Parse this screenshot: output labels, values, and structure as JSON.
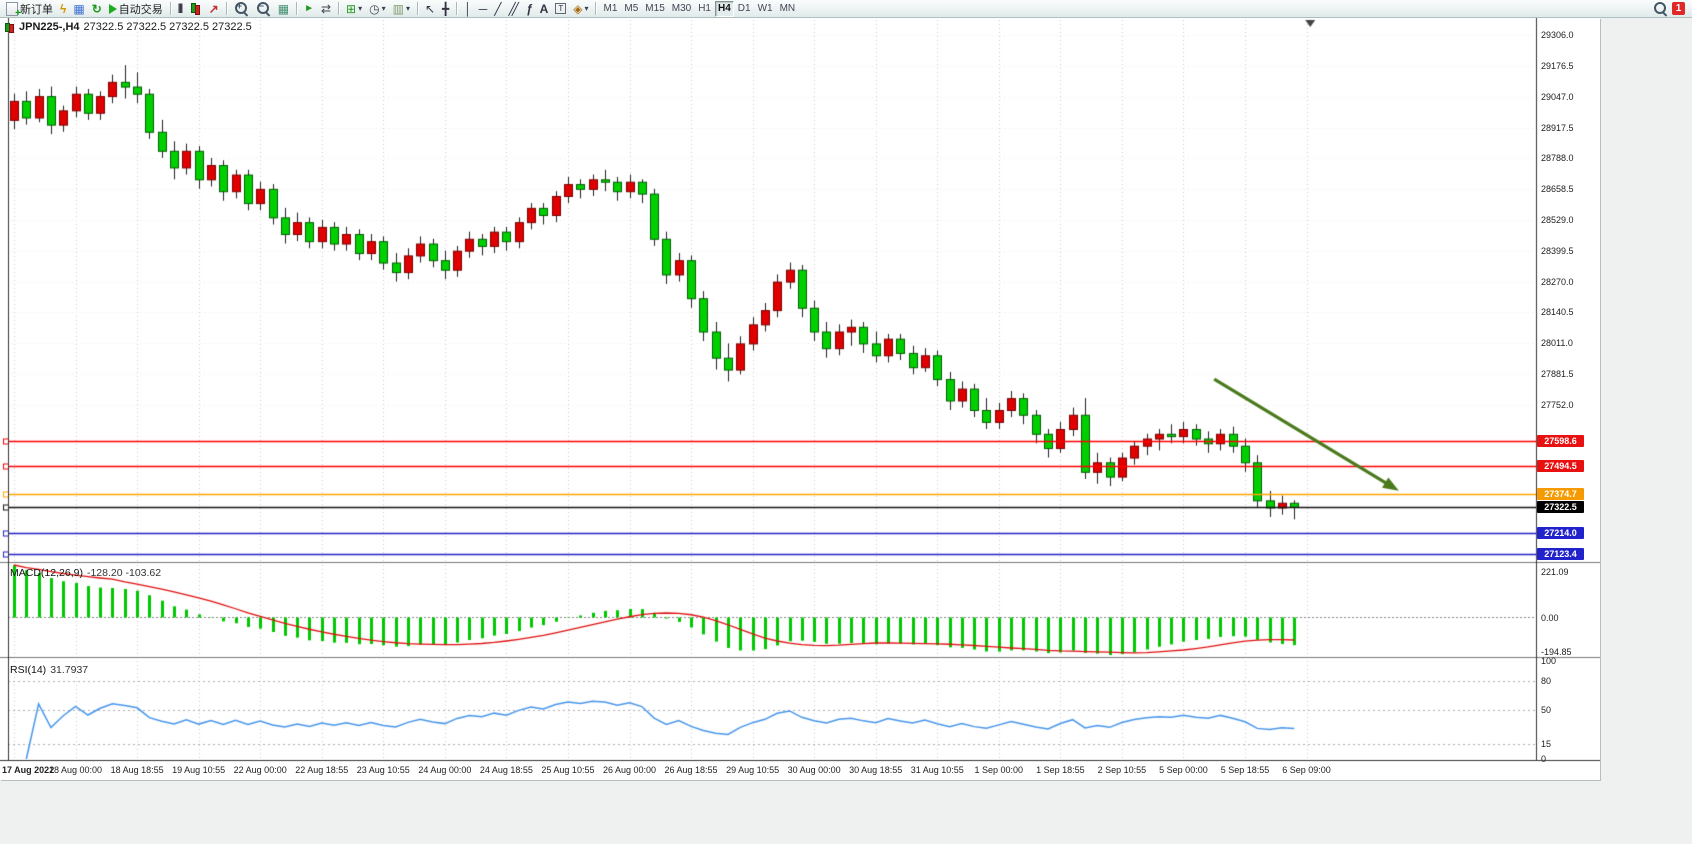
{
  "toolbar": {
    "new_order_label": "新订单",
    "auto_trading_label": "自动交易",
    "notification_count": "1",
    "items": [
      {
        "name": "new-order-button",
        "icon": "new-order",
        "shape": true,
        "label": "新订单"
      },
      {
        "name": "scripts-button",
        "icon": "bolt",
        "glyph": "ϟ"
      },
      {
        "name": "market-watch-button",
        "icon": "monitor",
        "glyph": "▦"
      },
      {
        "name": "refresh-button",
        "icon": "refresh",
        "glyph": "↻"
      },
      {
        "name": "auto-trading-button",
        "icon": "play",
        "shape": true,
        "label": "自动交易"
      },
      {
        "t": "sep"
      },
      {
        "name": "bar-chart-button",
        "icon": "bars",
        "glyph": "|||"
      },
      {
        "name": "candle-chart-button",
        "icon": "candles",
        "shape": true
      },
      {
        "name": "line-chart-button",
        "icon": "linechart",
        "glyph": "↗"
      },
      {
        "t": "sep"
      },
      {
        "name": "zoom-in-button",
        "icon": "zoom-in",
        "shape": true
      },
      {
        "name": "zoom-out-button",
        "icon": "zoom-out",
        "shape": true
      },
      {
        "name": "tile-windows-button",
        "icon": "tile",
        "glyph": "▦"
      },
      {
        "t": "sep"
      },
      {
        "name": "auto-scroll-button",
        "icon": "autoscroll",
        "glyph": "►"
      },
      {
        "name": "chart-shift-button",
        "icon": "chartshift",
        "glyph": "⇄"
      },
      {
        "t": "sep"
      },
      {
        "name": "new-chart-button",
        "icon": "newchart",
        "glyph": "⊞",
        "caret": true
      },
      {
        "name": "periods-button",
        "icon": "clock",
        "glyph": "◷",
        "caret": true
      },
      {
        "name": "templates-button",
        "icon": "template",
        "glyph": "▥",
        "caret": true
      },
      {
        "t": "sep"
      },
      {
        "name": "cursor-button",
        "icon": "cursor",
        "glyph": "↖"
      },
      {
        "name": "crosshair-button",
        "icon": "crosshair",
        "glyph": "╋"
      },
      {
        "t": "sep"
      },
      {
        "name": "vertical-line-button",
        "icon": "vline",
        "glyph": "│"
      },
      {
        "name": "horizontal-line-button",
        "icon": "hline",
        "glyph": "─"
      },
      {
        "name": "trendline-button",
        "icon": "trendline",
        "glyph": "╱"
      },
      {
        "name": "channel-button",
        "icon": "channel",
        "glyph": "╱╱"
      },
      {
        "name": "fibonacci-button",
        "icon": "fibo",
        "glyph": "ƒ"
      },
      {
        "name": "text-button",
        "icon": "text",
        "glyph": "A"
      },
      {
        "name": "text-label-button",
        "icon": "label",
        "glyph": "T"
      },
      {
        "name": "shapes-button",
        "icon": "shapes",
        "glyph": "◈",
        "caret": true
      },
      {
        "t": "sep"
      },
      {
        "t": "tf"
      },
      {
        "t": "spacer"
      },
      {
        "name": "search-button",
        "icon": "search",
        "shape": true
      },
      {
        "t": "badge"
      }
    ],
    "timeframes": [
      {
        "label": "M1"
      },
      {
        "label": "M5"
      },
      {
        "label": "M15"
      },
      {
        "label": "M30"
      },
      {
        "label": "H1"
      },
      {
        "label": "H4",
        "active": true
      },
      {
        "label": "D1"
      },
      {
        "label": "W1"
      },
      {
        "label": "MN"
      }
    ]
  },
  "chart": {
    "symbol_period": "JPN225-,H4",
    "ohlc_text": "27322.5 27322.5 27322.5 27322.5"
  },
  "chart_data": {
    "type": "candlestick",
    "symbol": "JPN225-",
    "timeframe": "H4",
    "bull_color": "#e00000",
    "bear_color": "#00d000",
    "price_axis": {
      "max": 29370,
      "min": 27095,
      "labels": [
        "29306.0",
        "29176.5",
        "29047.0",
        "28917.5",
        "28788.0",
        "28658.5",
        "28529.0",
        "28399.5",
        "28270.0",
        "28140.5",
        "28011.0",
        "27881.5",
        "27752.0"
      ]
    },
    "time_labels": [
      "17 Aug 2022",
      "18 Aug 00:00",
      "18 Aug 18:55",
      "19 Aug 10:55",
      "22 Aug 00:00",
      "22 Aug 18:55",
      "23 Aug 10:55",
      "24 Aug 00:00",
      "24 Aug 18:55",
      "25 Aug 10:55",
      "26 Aug 00:00",
      "26 Aug 18:55",
      "29 Aug 10:55",
      "30 Aug 00:00",
      "30 Aug 18:55",
      "31 Aug 10:55",
      "1 Sep 00:00",
      "1 Sep 18:55",
      "2 Sep 10:55",
      "5 Sep 00:00",
      "5 Sep 18:55",
      "6 Sep 09:00"
    ],
    "candles": [
      [
        28950,
        29060,
        28910,
        29030
      ],
      [
        29030,
        29070,
        28930,
        28960
      ],
      [
        28960,
        29080,
        28940,
        29050
      ],
      [
        29050,
        29090,
        28890,
        28930
      ],
      [
        28930,
        29010,
        28900,
        28990
      ],
      [
        28990,
        29090,
        28960,
        29060
      ],
      [
        29060,
        29080,
        28950,
        28980
      ],
      [
        28980,
        29070,
        28950,
        29050
      ],
      [
        29050,
        29140,
        29020,
        29110
      ],
      [
        29110,
        29180,
        29040,
        29090
      ],
      [
        29090,
        29150,
        29020,
        29060
      ],
      [
        29060,
        29080,
        28870,
        28900
      ],
      [
        28900,
        28950,
        28790,
        28820
      ],
      [
        28820,
        28860,
        28700,
        28750
      ],
      [
        28750,
        28850,
        28720,
        28820
      ],
      [
        28820,
        28840,
        28660,
        28700
      ],
      [
        28700,
        28790,
        28670,
        28760
      ],
      [
        28760,
        28780,
        28610,
        28650
      ],
      [
        28650,
        28740,
        28620,
        28720
      ],
      [
        28720,
        28740,
        28570,
        28600
      ],
      [
        28600,
        28690,
        28570,
        28660
      ],
      [
        28660,
        28680,
        28510,
        28540
      ],
      [
        28540,
        28580,
        28430,
        28470
      ],
      [
        28470,
        28560,
        28440,
        28520
      ],
      [
        28520,
        28540,
        28410,
        28440
      ],
      [
        28440,
        28530,
        28410,
        28500
      ],
      [
        28500,
        28520,
        28400,
        28430
      ],
      [
        28430,
        28500,
        28400,
        28470
      ],
      [
        28470,
        28490,
        28360,
        28390
      ],
      [
        28390,
        28470,
        28360,
        28440
      ],
      [
        28440,
        28460,
        28320,
        28350
      ],
      [
        28350,
        28390,
        28270,
        28310
      ],
      [
        28310,
        28410,
        28280,
        28380
      ],
      [
        28380,
        28460,
        28350,
        28430
      ],
      [
        28430,
        28450,
        28330,
        28360
      ],
      [
        28360,
        28400,
        28280,
        28320
      ],
      [
        28320,
        28420,
        28290,
        28400
      ],
      [
        28400,
        28480,
        28370,
        28450
      ],
      [
        28450,
        28470,
        28380,
        28420
      ],
      [
        28420,
        28500,
        28390,
        28480
      ],
      [
        28480,
        28500,
        28400,
        28440
      ],
      [
        28440,
        28540,
        28410,
        28520
      ],
      [
        28520,
        28600,
        28490,
        28580
      ],
      [
        28580,
        28600,
        28510,
        28550
      ],
      [
        28550,
        28650,
        28520,
        28630
      ],
      [
        28630,
        28710,
        28600,
        28680
      ],
      [
        28680,
        28700,
        28620,
        28660
      ],
      [
        28660,
        28720,
        28630,
        28700
      ],
      [
        28700,
        28740,
        28650,
        28690
      ],
      [
        28690,
        28710,
        28610,
        28650
      ],
      [
        28650,
        28720,
        28620,
        28690
      ],
      [
        28690,
        28700,
        28600,
        28640
      ],
      [
        28640,
        28660,
        28420,
        28450
      ],
      [
        28450,
        28480,
        28260,
        28300
      ],
      [
        28300,
        28390,
        28270,
        28360
      ],
      [
        28360,
        28380,
        28160,
        28200
      ],
      [
        28200,
        28230,
        28020,
        28060
      ],
      [
        28060,
        28100,
        27900,
        27950
      ],
      [
        27950,
        28010,
        27850,
        27900
      ],
      [
        27900,
        28040,
        27880,
        28010
      ],
      [
        28010,
        28120,
        27980,
        28090
      ],
      [
        28090,
        28180,
        28060,
        28150
      ],
      [
        28150,
        28300,
        28120,
        28270
      ],
      [
        28270,
        28350,
        28240,
        28320
      ],
      [
        28320,
        28340,
        28120,
        28160
      ],
      [
        28160,
        28190,
        28020,
        28060
      ],
      [
        28060,
        28100,
        27950,
        27990
      ],
      [
        27990,
        28090,
        27960,
        28060
      ],
      [
        28060,
        28110,
        28000,
        28080
      ],
      [
        28080,
        28100,
        27970,
        28010
      ],
      [
        28010,
        28060,
        27930,
        27960
      ],
      [
        27960,
        28050,
        27930,
        28030
      ],
      [
        28030,
        28050,
        27940,
        27970
      ],
      [
        27970,
        28000,
        27880,
        27910
      ],
      [
        27910,
        27990,
        27890,
        27960
      ],
      [
        27960,
        27980,
        27830,
        27860
      ],
      [
        27860,
        27890,
        27730,
        27770
      ],
      [
        27770,
        27850,
        27740,
        27820
      ],
      [
        27820,
        27840,
        27700,
        27730
      ],
      [
        27730,
        27780,
        27650,
        27680
      ],
      [
        27680,
        27760,
        27650,
        27730
      ],
      [
        27730,
        27810,
        27700,
        27780
      ],
      [
        27780,
        27800,
        27670,
        27710
      ],
      [
        27710,
        27730,
        27590,
        27630
      ],
      [
        27630,
        27650,
        27530,
        27570
      ],
      [
        27570,
        27680,
        27550,
        27650
      ],
      [
        27650,
        27740,
        27620,
        27710
      ],
      [
        27710,
        27780,
        27440,
        27470
      ],
      [
        27470,
        27550,
        27420,
        27510
      ],
      [
        27510,
        27530,
        27410,
        27450
      ],
      [
        27450,
        27550,
        27430,
        27530
      ],
      [
        27530,
        27600,
        27500,
        27580
      ],
      [
        27580,
        27630,
        27540,
        27610
      ],
      [
        27610,
        27650,
        27560,
        27630
      ],
      [
        27630,
        27670,
        27590,
        27620
      ],
      [
        27620,
        27680,
        27590,
        27650
      ],
      [
        27650,
        27670,
        27580,
        27610
      ],
      [
        27610,
        27640,
        27550,
        27590
      ],
      [
        27590,
        27650,
        27560,
        27630
      ],
      [
        27630,
        27660,
        27550,
        27580
      ],
      [
        27580,
        27610,
        27470,
        27510
      ],
      [
        27510,
        27540,
        27320,
        27350
      ],
      [
        27350,
        27390,
        27280,
        27320
      ],
      [
        27320,
        27370,
        27290,
        27340
      ],
      [
        27340,
        27350,
        27270,
        27322.5
      ]
    ],
    "hlines": [
      {
        "price": 27598.6,
        "color": "#ff0000",
        "label": "27598.6",
        "label_bg": "#e81010"
      },
      {
        "price": 27494.5,
        "color": "#ff0000",
        "label": "27494.5",
        "label_bg": "#e81010"
      },
      {
        "price": 27374.7,
        "color": "#ffa500",
        "label": "27374.7",
        "label_bg": "#f59a00"
      },
      {
        "price": 27322.5,
        "color": "#151515",
        "label": "27322.5",
        "label_bg": "#000000",
        "role": "bid"
      },
      {
        "price": 27214.0,
        "color": "#2222cc",
        "label": "27214.0",
        "label_bg": "#2222cc"
      },
      {
        "price": 27123.4,
        "color": "#2222cc",
        "label": "27123.4",
        "label_bg": "#2222cc"
      }
    ],
    "arrow": {
      "from_bar": 97.5,
      "from_price": 27860,
      "to_bar": 112.5,
      "to_price": 27390,
      "color": "#4a7a1c"
    },
    "shift_marker_bar": 105.3,
    "macd": {
      "label": "MACD(12,26,9)",
      "values_text": "-128.20 -103.62",
      "params": [
        12,
        26,
        9
      ],
      "seed": 221.09,
      "axis_max_label": "221.09",
      "axis_zero_label": "0.00",
      "axis_min_label": "-194.85",
      "hist_color": "#00c800",
      "signal_color": "#e01010"
    },
    "rsi": {
      "label": "RSI(14)",
      "value_text": "31.7937",
      "period": 14,
      "color": "#4896ec",
      "axis_labels": [
        {
          "v": 100,
          "t": "100"
        },
        {
          "v": 80,
          "t": "80"
        },
        {
          "v": 50,
          "t": "50"
        },
        {
          "v": 15,
          "t": "15"
        },
        {
          "v": 0,
          "t": "0"
        }
      ],
      "levels": [
        80,
        50,
        15
      ]
    }
  }
}
